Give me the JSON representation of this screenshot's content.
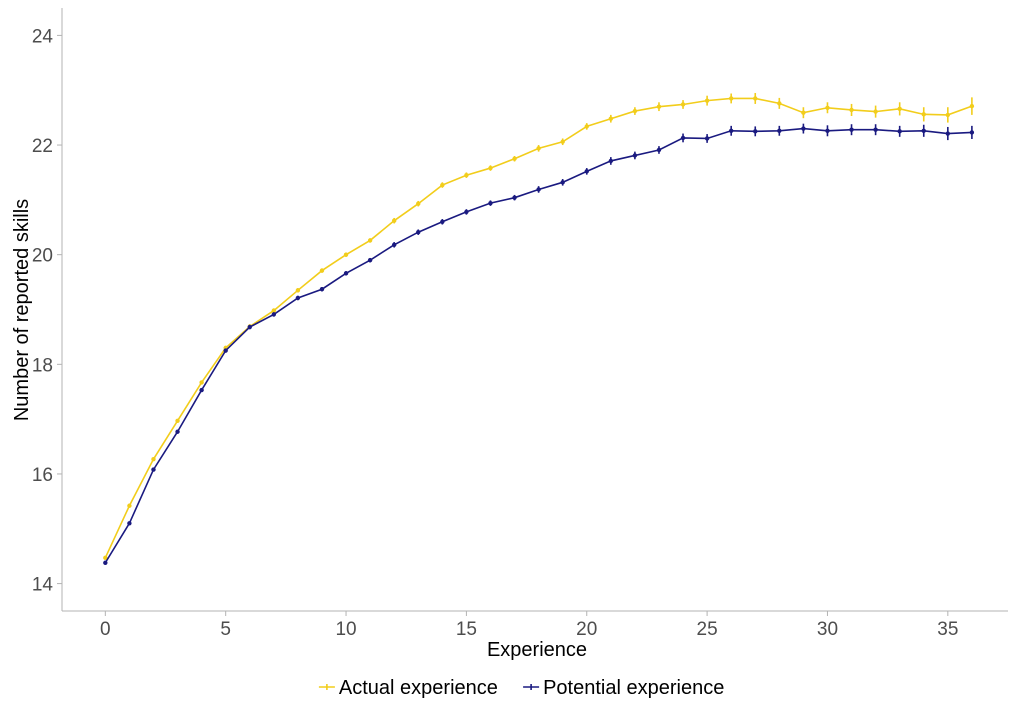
{
  "chart_data": {
    "type": "line",
    "title": "",
    "xlabel": "Experience",
    "ylabel": "Number of reported skills",
    "xlim": [
      -1.8,
      37.5
    ],
    "ylim": [
      13.5,
      24.5
    ],
    "xticks": [
      0,
      5,
      10,
      15,
      20,
      25,
      30,
      35
    ],
    "yticks": [
      14,
      16,
      18,
      20,
      22,
      24
    ],
    "x": [
      0,
      1,
      2,
      3,
      4,
      5,
      6,
      7,
      8,
      9,
      10,
      11,
      12,
      13,
      14,
      15,
      16,
      17,
      18,
      19,
      20,
      21,
      22,
      23,
      24,
      25,
      26,
      27,
      28,
      29,
      30,
      31,
      32,
      33,
      34,
      35,
      36
    ],
    "legend_position": "bottom",
    "grid": false,
    "series": [
      {
        "name": "Actual experience",
        "color": "#f2cd1b",
        "values": [
          14.47,
          15.42,
          16.27,
          16.97,
          17.67,
          18.3,
          18.69,
          18.98,
          19.35,
          19.71,
          20.0,
          20.26,
          20.62,
          20.93,
          21.27,
          21.45,
          21.58,
          21.75,
          21.94,
          22.06,
          22.34,
          22.48,
          22.62,
          22.7,
          22.74,
          22.81,
          22.85,
          22.85,
          22.76,
          22.59,
          22.68,
          22.64,
          22.61,
          22.66,
          22.56,
          22.55,
          22.71
        ],
        "error": [
          0.03,
          0.03,
          0.03,
          0.03,
          0.03,
          0.03,
          0.04,
          0.04,
          0.04,
          0.04,
          0.04,
          0.04,
          0.05,
          0.05,
          0.05,
          0.05,
          0.05,
          0.05,
          0.06,
          0.06,
          0.06,
          0.07,
          0.07,
          0.08,
          0.08,
          0.09,
          0.09,
          0.1,
          0.1,
          0.1,
          0.1,
          0.11,
          0.11,
          0.12,
          0.13,
          0.14,
          0.16
        ]
      },
      {
        "name": "Potential experience",
        "color": "#1a1a80",
        "values": [
          14.38,
          15.1,
          16.08,
          16.77,
          17.53,
          18.25,
          18.68,
          18.91,
          19.21,
          19.37,
          19.66,
          19.9,
          20.18,
          20.41,
          20.6,
          20.78,
          20.94,
          21.04,
          21.19,
          21.32,
          21.52,
          21.71,
          21.81,
          21.91,
          22.13,
          22.12,
          22.26,
          22.25,
          22.26,
          22.3,
          22.26,
          22.28,
          22.28,
          22.25,
          22.26,
          22.21,
          22.23
        ],
        "error": [
          0.03,
          0.03,
          0.03,
          0.03,
          0.03,
          0.03,
          0.04,
          0.04,
          0.04,
          0.04,
          0.04,
          0.04,
          0.05,
          0.05,
          0.05,
          0.05,
          0.05,
          0.05,
          0.06,
          0.06,
          0.06,
          0.07,
          0.07,
          0.07,
          0.08,
          0.08,
          0.09,
          0.09,
          0.09,
          0.09,
          0.1,
          0.1,
          0.1,
          0.1,
          0.11,
          0.12,
          0.12
        ]
      }
    ]
  }
}
